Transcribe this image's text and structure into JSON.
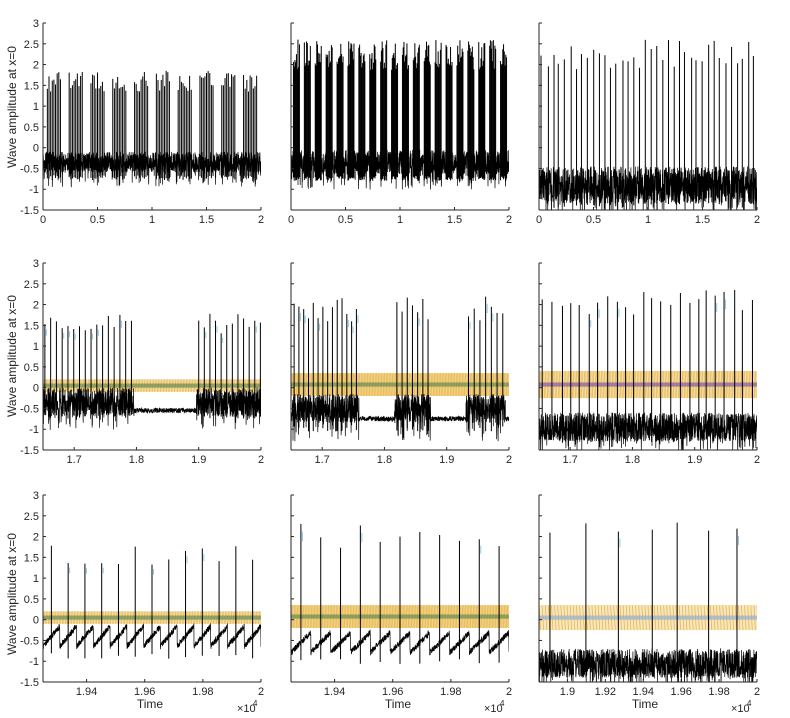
{
  "figure": {
    "ylabel": "Wave amplitude at x=0",
    "xlabel": "Time",
    "exponent_base": "×10",
    "exponent_power": "4"
  },
  "colors": {
    "signal": "#000000",
    "peak_highlight": "#8ecae6",
    "band_orange": "#e8b84a",
    "band_green": "#6f8f55",
    "band_purple": "#8a5fa8",
    "band_blue": "#9bb2cc",
    "axis": "#262626"
  },
  "chart_data": [
    {
      "type": "line",
      "row": 0,
      "col": 0,
      "ylim": [
        -1.5,
        3
      ],
      "xlim": [
        0,
        2
      ],
      "xticks": [
        "0",
        "0.5",
        "1",
        "1.5",
        "2"
      ],
      "yticks": [
        "-1.5",
        "-1",
        "-0.5",
        "0",
        "0.5",
        "1",
        "1.5",
        "2",
        "2.5",
        "3"
      ],
      "pattern": "bursting",
      "bursts": 10,
      "burst_width": 0.12,
      "spike_max": 1.85,
      "baseline": -0.35,
      "baseline_amp": 0.25,
      "floor": -0.78,
      "overlay": "none"
    },
    {
      "type": "line",
      "row": 0,
      "col": 1,
      "ylim": [
        -1.5,
        3
      ],
      "xlim": [
        0,
        2
      ],
      "xticks": [
        "0",
        "0.5",
        "1",
        "1.5",
        "2"
      ],
      "yticks": [
        "",
        "",
        "",
        "",
        "",
        "",
        "",
        "",
        "",
        ""
      ],
      "pattern": "bursting",
      "bursts": 20,
      "burst_width": 0.055,
      "spike_max": 2.6,
      "baseline": -0.35,
      "baseline_amp": 0.3,
      "floor": -0.8,
      "overlay": "none"
    },
    {
      "type": "line",
      "row": 0,
      "col": 2,
      "ylim": [
        -1.5,
        3
      ],
      "xlim": [
        0,
        2
      ],
      "xticks": [
        "0",
        "0.5",
        "1",
        "1.5",
        "2"
      ],
      "yticks": [
        "",
        "",
        "",
        "",
        "",
        "",
        "",
        "",
        "",
        ""
      ],
      "pattern": "spiking",
      "spikes": 38,
      "spike_max": 2.6,
      "baseline": -0.9,
      "baseline_amp": 0.45,
      "floor": -1.45,
      "overlay": "none"
    },
    {
      "type": "line",
      "row": 1,
      "col": 0,
      "ylim": [
        -1.5,
        3
      ],
      "xlim": [
        1.65,
        2
      ],
      "xticks": [
        "1.7",
        "1.8",
        "1.9",
        "2"
      ],
      "yticks": [
        "-1.5",
        "-1",
        "-0.5",
        "0",
        "0.5",
        "1",
        "1.5",
        "2",
        "2.5",
        "3"
      ],
      "pattern": "bursts_gap",
      "bursts": [
        [
          1.653,
          1.792,
          16
        ],
        [
          1.9,
          1.999,
          12
        ]
      ],
      "spike_max": 1.8,
      "baseline": -0.35,
      "baseline_amp": 0.35,
      "floor": -0.75,
      "quiet_level": -0.55,
      "overlay": "narrow",
      "band_lo": -0.1,
      "band_hi": 0.2
    },
    {
      "type": "line",
      "row": 1,
      "col": 1,
      "ylim": [
        -1.5,
        3
      ],
      "xlim": [
        1.65,
        2
      ],
      "xticks": [
        "1.7",
        "1.8",
        "1.9",
        "2"
      ],
      "yticks": [
        "",
        "",
        "",
        "",
        "",
        "",
        "",
        "",
        "",
        ""
      ],
      "pattern": "bursts_gap",
      "bursts": [
        [
          1.655,
          1.755,
          14
        ],
        [
          1.82,
          1.87,
          7
        ],
        [
          1.935,
          1.99,
          7
        ]
      ],
      "spike_max": 2.2,
      "baseline": -0.5,
      "baseline_amp": 0.35,
      "floor": -1.05,
      "quiet_level": -0.75,
      "overlay": "wide",
      "band_lo": -0.2,
      "band_hi": 0.35
    },
    {
      "type": "line",
      "row": 1,
      "col": 2,
      "ylim": [
        -1.5,
        3
      ],
      "xlim": [
        1.65,
        2
      ],
      "xticks": [
        "1.7",
        "1.8",
        "1.9",
        "2"
      ],
      "yticks": [
        "",
        "",
        "",
        "",
        "",
        "",
        "",
        "",
        "",
        ""
      ],
      "pattern": "spiking",
      "spikes": 24,
      "spike_max": 2.4,
      "baseline": -0.95,
      "baseline_amp": 0.35,
      "floor": -1.35,
      "overlay": "dense",
      "band_lo": -0.25,
      "band_hi": 0.4
    },
    {
      "type": "line",
      "row": 2,
      "col": 0,
      "ylim": [
        -1.5,
        3
      ],
      "xlim": [
        1.925,
        2
      ],
      "xticks": [
        "1.94",
        "1.96",
        "1.98",
        "2"
      ],
      "yticks": [
        "-1.5",
        "-1",
        "-0.5",
        "0",
        "0.5",
        "1",
        "1.5",
        "2",
        "2.5",
        "3"
      ],
      "pattern": "regular",
      "spikes": 13,
      "spike_max": 1.8,
      "baseline": -0.4,
      "baseline_amp": 0.3,
      "floor": -0.95,
      "overlay": "narrow",
      "band_lo": -0.1,
      "band_hi": 0.2
    },
    {
      "type": "line",
      "row": 2,
      "col": 1,
      "ylim": [
        -1.5,
        3
      ],
      "xlim": [
        1.925,
        2
      ],
      "xticks": [
        "1.94",
        "1.96",
        "1.98",
        "2"
      ],
      "yticks": [
        "",
        "",
        "",
        "",
        "",
        "",
        "",
        "",
        "",
        ""
      ],
      "pattern": "regular",
      "spikes": 11,
      "spike_max": 2.4,
      "baseline": -0.55,
      "baseline_amp": 0.3,
      "floor": -1.1,
      "overlay": "wide",
      "band_lo": -0.2,
      "band_hi": 0.35
    },
    {
      "type": "line",
      "row": 2,
      "col": 2,
      "ylim": [
        -1.5,
        3
      ],
      "xlim": [
        1.885,
        2
      ],
      "xticks": [
        "1.9",
        "1.92",
        "1.94",
        "1.96",
        "1.98",
        "2"
      ],
      "yticks": [
        "",
        "",
        "",
        "",
        "",
        "",
        "",
        "",
        "",
        ""
      ],
      "pattern": "spiking",
      "spikes": 7,
      "spike_max": 2.5,
      "baseline": -1.05,
      "baseline_amp": 0.35,
      "floor": -1.4,
      "overlay": "loops",
      "band_lo": -0.25,
      "band_hi": 0.35
    }
  ]
}
